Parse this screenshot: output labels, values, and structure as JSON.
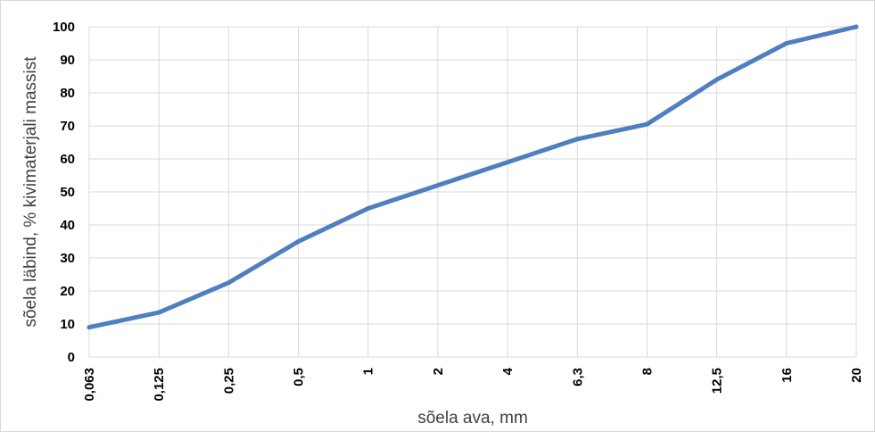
{
  "chart_data": {
    "type": "line",
    "title": "",
    "xlabel": "sõela ava, mm",
    "ylabel": "sõela läbind, % kivimaterjali massist",
    "categories": [
      "0,063",
      "0,125",
      "0,25",
      "0,5",
      "1",
      "2",
      "4",
      "6,3",
      "8",
      "12,5",
      "16",
      "20"
    ],
    "series": [
      {
        "values": [
          9,
          13.5,
          22.5,
          35,
          45,
          52,
          59,
          66,
          70.5,
          84,
          95,
          100
        ]
      }
    ],
    "ylim": [
      0,
      100
    ],
    "yticks": [
      "0",
      "10",
      "20",
      "30",
      "40",
      "50",
      "60",
      "70",
      "80",
      "90",
      "100"
    ],
    "grid": true,
    "legend": "none",
    "colors": {
      "line": "#4f7fbf",
      "grid": "#d9d9d9",
      "frame": "#d9d9d9"
    }
  }
}
